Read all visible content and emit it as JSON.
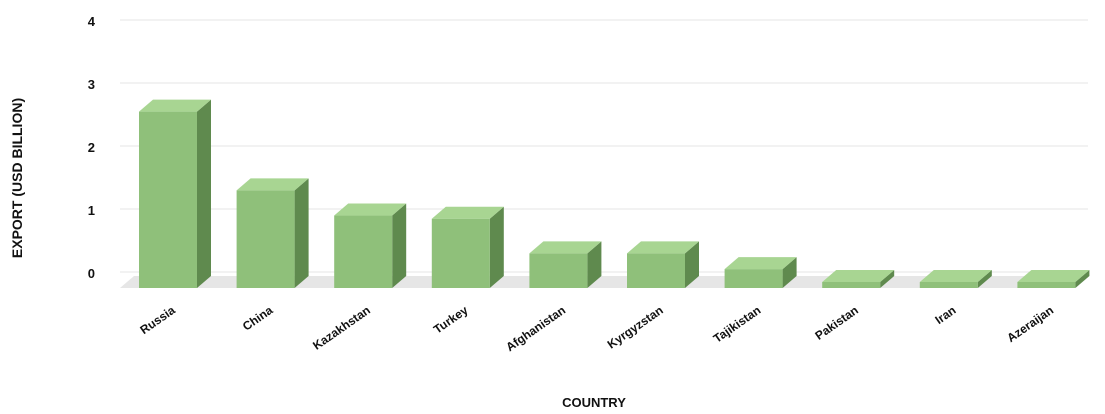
{
  "chart_data": {
    "type": "bar",
    "title": "",
    "xlabel": "COUNTRY",
    "ylabel": "EXPORT (USD BILLION)",
    "categories": [
      "Russia",
      "China",
      "Kazakhstan",
      "Turkey",
      "Afghanistan",
      "Kyrgyzstan",
      "Tajikistan",
      "Pakistan",
      "Iran",
      "Azeraijan"
    ],
    "values": [
      2.8,
      1.55,
      1.15,
      1.1,
      0.55,
      0.55,
      0.3,
      0.05,
      0.0,
      -0.05
    ],
    "yticks": [
      "4",
      "3",
      "2",
      "1",
      "0"
    ],
    "ylim": [
      0,
      4
    ],
    "grid": true,
    "colors": {
      "bar_front": "#8fc07a",
      "bar_top": "#a8d592",
      "bar_side": "#5f8a4e",
      "grid": "#e4e4e4",
      "floor": "#e6e6e6"
    }
  }
}
